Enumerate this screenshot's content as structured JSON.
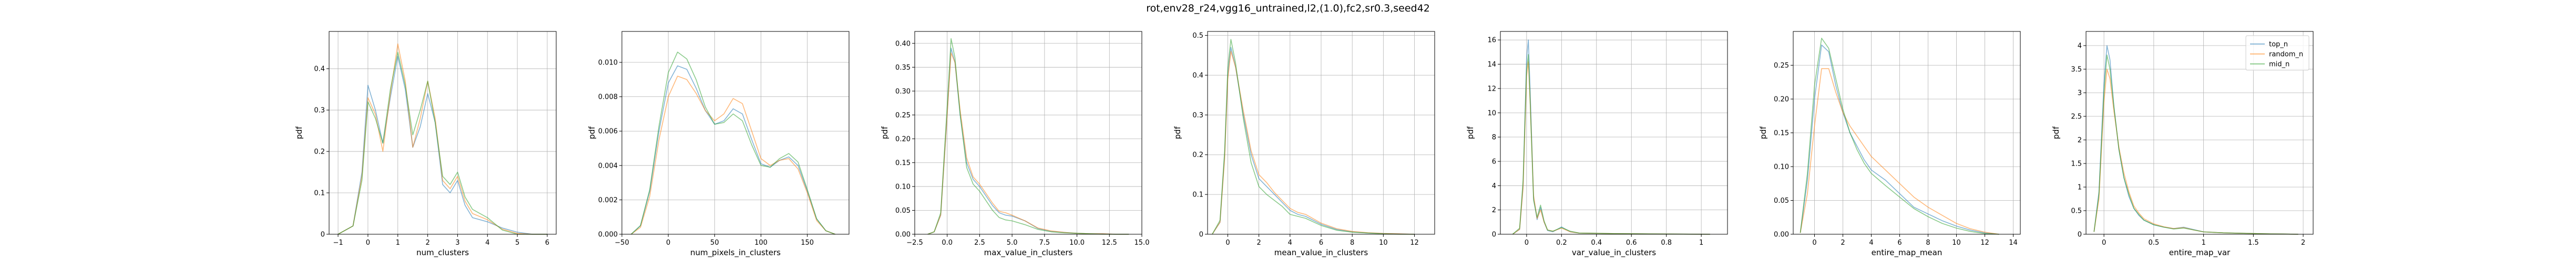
{
  "figure": {
    "title": "rot,env28_r24,vgg16_untrained,l2,(1.0),fc2,sr0.3,seed42"
  },
  "legend": {
    "placement": "top-right of last panel",
    "entries": [
      "top_n",
      "random_n",
      "mid_n"
    ]
  },
  "colors": {
    "top_n": "#1f77b4",
    "random_n": "#ff7f0e",
    "mid_n": "#2ca02c"
  },
  "chart_data": [
    {
      "type": "line",
      "xlabel": "num_clusters",
      "ylabel": "pdf",
      "xlim": [
        -1.3,
        6.3
      ],
      "ylim": [
        0,
        0.49
      ],
      "grid": true,
      "xticks": [
        -1,
        0,
        1,
        2,
        3,
        4,
        5,
        6
      ],
      "yticks": [
        0.0,
        0.1,
        0.2,
        0.3,
        0.4
      ],
      "x": [
        -1,
        -0.5,
        -0.2,
        0,
        0.25,
        0.5,
        0.75,
        1,
        1.25,
        1.5,
        1.75,
        2,
        2.25,
        2.5,
        2.75,
        3,
        3.25,
        3.5,
        4,
        4.5,
        5,
        5.5,
        6
      ],
      "series": [
        {
          "name": "top_n",
          "values": [
            0,
            0.02,
            0.15,
            0.36,
            0.3,
            0.22,
            0.33,
            0.43,
            0.35,
            0.21,
            0.26,
            0.34,
            0.27,
            0.12,
            0.1,
            0.13,
            0.07,
            0.04,
            0.03,
            0.015,
            0.005,
            0,
            0
          ]
        },
        {
          "name": "random_n",
          "values": [
            0,
            0.02,
            0.14,
            0.33,
            0.29,
            0.2,
            0.34,
            0.46,
            0.37,
            0.21,
            0.28,
            0.37,
            0.28,
            0.13,
            0.11,
            0.14,
            0.08,
            0.05,
            0.035,
            0.012,
            0.002,
            0,
            0
          ]
        },
        {
          "name": "mid_n",
          "values": [
            0,
            0.02,
            0.13,
            0.32,
            0.28,
            0.22,
            0.35,
            0.44,
            0.36,
            0.24,
            0.3,
            0.37,
            0.27,
            0.14,
            0.12,
            0.15,
            0.09,
            0.06,
            0.04,
            0.01,
            0,
            0,
            0
          ]
        }
      ]
    },
    {
      "type": "line",
      "xlabel": "num_pixels_in_clusters",
      "ylabel": "pdf",
      "xlim": [
        -50,
        195
      ],
      "ylim": [
        0,
        0.0118
      ],
      "grid": true,
      "xticks": [
        -50,
        0,
        50,
        100,
        150
      ],
      "yticks": [
        0.0,
        0.002,
        0.004,
        0.006,
        0.008,
        0.01
      ],
      "ytick_labels": [
        "0.000",
        "0.002",
        "0.004",
        "0.006",
        "0.008",
        "0.010"
      ],
      "x": [
        -40,
        -30,
        -20,
        -10,
        0,
        10,
        20,
        30,
        40,
        50,
        60,
        70,
        80,
        90,
        100,
        110,
        120,
        130,
        140,
        150,
        160,
        170,
        180
      ],
      "series": [
        {
          "name": "top_n",
          "values": [
            0,
            0.0005,
            0.0025,
            0.006,
            0.0088,
            0.0098,
            0.0096,
            0.0085,
            0.0072,
            0.0064,
            0.0066,
            0.0073,
            0.007,
            0.0055,
            0.0041,
            0.0039,
            0.0043,
            0.0045,
            0.004,
            0.0025,
            0.0009,
            0.0002,
            0
          ]
        },
        {
          "name": "random_n",
          "values": [
            0,
            0.0004,
            0.0022,
            0.0055,
            0.008,
            0.0092,
            0.009,
            0.0082,
            0.0072,
            0.0066,
            0.007,
            0.0079,
            0.0076,
            0.006,
            0.0044,
            0.004,
            0.0043,
            0.0044,
            0.0038,
            0.0024,
            0.0008,
            0.0002,
            0
          ]
        },
        {
          "name": "mid_n",
          "values": [
            0,
            0.0005,
            0.0026,
            0.0063,
            0.0094,
            0.0106,
            0.0102,
            0.009,
            0.0074,
            0.0064,
            0.0065,
            0.007,
            0.0066,
            0.0052,
            0.004,
            0.0039,
            0.0044,
            0.0047,
            0.0042,
            0.0026,
            0.0009,
            0.0002,
            0
          ]
        }
      ]
    },
    {
      "type": "line",
      "xlabel": "max_value_in_clusters",
      "ylabel": "pdf",
      "xlim": [
        -2.5,
        15.0
      ],
      "ylim": [
        0,
        0.425
      ],
      "grid": true,
      "xticks": [
        -2.5,
        0.0,
        2.5,
        5.0,
        7.5,
        10.0,
        12.5,
        15.0
      ],
      "xtick_labels": [
        "−2.5",
        "0.0",
        "2.5",
        "5.0",
        "7.5",
        "10.0",
        "12.5",
        "15.0"
      ],
      "yticks": [
        0.0,
        0.05,
        0.1,
        0.15,
        0.2,
        0.25,
        0.3,
        0.35,
        0.4
      ],
      "ytick_labels": [
        "0.00",
        "0.05",
        "0.10",
        "0.15",
        "0.20",
        "0.25",
        "0.30",
        "0.35",
        "0.40"
      ],
      "x": [
        -1.5,
        -1,
        -0.5,
        0,
        0.3,
        0.6,
        1,
        1.5,
        2,
        2.5,
        3,
        3.5,
        4,
        4.5,
        5,
        6,
        7,
        8,
        9,
        10,
        11,
        12,
        13,
        14
      ],
      "series": [
        {
          "name": "top_n",
          "values": [
            0,
            0.005,
            0.04,
            0.25,
            0.39,
            0.36,
            0.25,
            0.15,
            0.115,
            0.1,
            0.08,
            0.06,
            0.045,
            0.04,
            0.038,
            0.028,
            0.012,
            0.006,
            0.004,
            0.002,
            0.001,
            0.001,
            0,
            0
          ]
        },
        {
          "name": "random_n",
          "values": [
            0,
            0.005,
            0.04,
            0.25,
            0.38,
            0.36,
            0.26,
            0.16,
            0.12,
            0.105,
            0.085,
            0.065,
            0.048,
            0.045,
            0.04,
            0.028,
            0.013,
            0.007,
            0.004,
            0.002,
            0.001,
            0.001,
            0,
            0
          ]
        },
        {
          "name": "mid_n",
          "values": [
            0,
            0.005,
            0.045,
            0.27,
            0.41,
            0.37,
            0.25,
            0.14,
            0.105,
            0.09,
            0.07,
            0.05,
            0.035,
            0.03,
            0.028,
            0.02,
            0.01,
            0.005,
            0.003,
            0.002,
            0.001,
            0,
            0,
            0
          ]
        }
      ]
    },
    {
      "type": "line",
      "xlabel": "mean_value_in_clusters",
      "ylabel": "pdf",
      "xlim": [
        -1.3,
        13.3
      ],
      "ylim": [
        0,
        0.51
      ],
      "grid": true,
      "xticks": [
        0,
        2,
        4,
        6,
        8,
        10,
        12
      ],
      "yticks": [
        0.0,
        0.1,
        0.2,
        0.3,
        0.4,
        0.5
      ],
      "x": [
        -1,
        -0.5,
        -0.2,
        0,
        0.2,
        0.5,
        1,
        1.5,
        2,
        2.5,
        3,
        3.5,
        4,
        4.5,
        5,
        6,
        7,
        8,
        9,
        10,
        11,
        12
      ],
      "series": [
        {
          "name": "top_n",
          "values": [
            0,
            0.03,
            0.2,
            0.4,
            0.47,
            0.42,
            0.3,
            0.2,
            0.14,
            0.12,
            0.1,
            0.08,
            0.06,
            0.05,
            0.045,
            0.025,
            0.012,
            0.006,
            0.003,
            0.002,
            0.001,
            0
          ]
        },
        {
          "name": "random_n",
          "values": [
            0,
            0.03,
            0.19,
            0.39,
            0.46,
            0.42,
            0.31,
            0.21,
            0.15,
            0.13,
            0.105,
            0.085,
            0.065,
            0.055,
            0.05,
            0.028,
            0.014,
            0.007,
            0.004,
            0.002,
            0.001,
            0
          ]
        },
        {
          "name": "mid_n",
          "values": [
            0,
            0.035,
            0.21,
            0.42,
            0.49,
            0.43,
            0.29,
            0.18,
            0.12,
            0.1,
            0.085,
            0.07,
            0.05,
            0.045,
            0.04,
            0.022,
            0.01,
            0.005,
            0.003,
            0.001,
            0,
            0
          ]
        }
      ]
    },
    {
      "type": "line",
      "xlabel": "var_value_in_clusters",
      "ylabel": "pdf",
      "xlim": [
        -0.15,
        1.15
      ],
      "ylim": [
        0,
        16.7
      ],
      "grid": true,
      "xticks": [
        0.0,
        0.2,
        0.4,
        0.6,
        0.8,
        1.0
      ],
      "yticks": [
        0,
        2,
        4,
        6,
        8,
        10,
        12,
        14,
        16
      ],
      "x": [
        -0.08,
        -0.04,
        -0.02,
        0,
        0.01,
        0.02,
        0.04,
        0.06,
        0.08,
        0.1,
        0.12,
        0.15,
        0.2,
        0.25,
        0.3,
        0.5,
        0.8,
        1.05
      ],
      "series": [
        {
          "name": "top_n",
          "values": [
            0,
            0.4,
            4,
            14.5,
            16,
            12,
            3,
            1.2,
            2.2,
            1.0,
            0.3,
            0.2,
            0.6,
            0.2,
            0.1,
            0.05,
            0.02,
            0
          ]
        },
        {
          "name": "random_n",
          "values": [
            0,
            0.4,
            3.8,
            13,
            14.2,
            11,
            3.2,
            1.3,
            2.0,
            1.0,
            0.35,
            0.25,
            0.5,
            0.2,
            0.1,
            0.05,
            0.02,
            0
          ]
        },
        {
          "name": "mid_n",
          "values": [
            0,
            0.5,
            4.5,
            13.5,
            14.8,
            11,
            2.8,
            1.4,
            2.4,
            1.1,
            0.35,
            0.25,
            0.55,
            0.25,
            0.1,
            0.05,
            0.02,
            0
          ]
        }
      ]
    },
    {
      "type": "line",
      "xlabel": "entire_map_mean",
      "ylabel": "pdf",
      "xlim": [
        -1.5,
        14.5
      ],
      "ylim": [
        0,
        0.3
      ],
      "grid": true,
      "xticks": [
        0,
        2,
        4,
        6,
        8,
        10,
        12,
        14
      ],
      "yticks": [
        0.0,
        0.05,
        0.1,
        0.15,
        0.2,
        0.25
      ],
      "ytick_labels": [
        "0.00",
        "0.05",
        "0.10",
        "0.15",
        "0.20",
        "0.25"
      ],
      "x": [
        -1,
        -0.5,
        0,
        0.5,
        1,
        1.5,
        2,
        2.5,
        3,
        3.5,
        4,
        5,
        6,
        7,
        8,
        9,
        10,
        11,
        12,
        13
      ],
      "series": [
        {
          "name": "top_n",
          "values": [
            0.002,
            0.08,
            0.2,
            0.28,
            0.27,
            0.22,
            0.18,
            0.15,
            0.13,
            0.11,
            0.095,
            0.08,
            0.06,
            0.04,
            0.03,
            0.02,
            0.012,
            0.006,
            0.002,
            0
          ]
        },
        {
          "name": "random_n",
          "values": [
            0.002,
            0.06,
            0.16,
            0.245,
            0.245,
            0.21,
            0.18,
            0.16,
            0.145,
            0.13,
            0.115,
            0.095,
            0.075,
            0.055,
            0.04,
            0.028,
            0.016,
            0.008,
            0.003,
            0
          ]
        },
        {
          "name": "mid_n",
          "values": [
            0.002,
            0.09,
            0.22,
            0.29,
            0.275,
            0.23,
            0.185,
            0.15,
            0.125,
            0.105,
            0.09,
            0.072,
            0.055,
            0.038,
            0.026,
            0.016,
            0.009,
            0.004,
            0.001,
            0
          ]
        }
      ]
    },
    {
      "type": "line",
      "xlabel": "entire_map_var",
      "ylabel": "pdf",
      "xlim": [
        -0.18,
        2.1
      ],
      "ylim": [
        0,
        4.3
      ],
      "grid": true,
      "xticks": [
        0.0,
        0.5,
        1.0,
        1.5,
        2.0
      ],
      "yticks": [
        0.0,
        0.5,
        1.0,
        1.5,
        2.0,
        2.5,
        3.0,
        3.5,
        4.0
      ],
      "x": [
        -0.1,
        -0.05,
        0,
        0.03,
        0.06,
        0.1,
        0.15,
        0.2,
        0.25,
        0.3,
        0.35,
        0.4,
        0.5,
        0.6,
        0.7,
        0.8,
        0.9,
        1.0,
        1.2,
        1.4,
        1.6,
        1.8,
        1.95
      ],
      "series": [
        {
          "name": "top_n",
          "values": [
            0.05,
            0.9,
            3.2,
            4.0,
            3.7,
            2.7,
            1.8,
            1.2,
            0.8,
            0.55,
            0.4,
            0.3,
            0.2,
            0.15,
            0.12,
            0.15,
            0.1,
            0.05,
            0.03,
            0.02,
            0.01,
            0.005,
            0
          ]
        },
        {
          "name": "random_n",
          "values": [
            0.05,
            0.75,
            2.8,
            3.5,
            3.3,
            2.6,
            1.85,
            1.3,
            0.9,
            0.6,
            0.45,
            0.33,
            0.22,
            0.16,
            0.12,
            0.14,
            0.09,
            0.05,
            0.03,
            0.02,
            0.01,
            0.005,
            0
          ]
        },
        {
          "name": "mid_n",
          "values": [
            0.05,
            0.85,
            3.0,
            3.8,
            3.5,
            2.7,
            1.8,
            1.2,
            0.85,
            0.55,
            0.42,
            0.3,
            0.2,
            0.15,
            0.11,
            0.13,
            0.09,
            0.05,
            0.03,
            0.02,
            0.01,
            0.005,
            0
          ]
        }
      ]
    }
  ]
}
